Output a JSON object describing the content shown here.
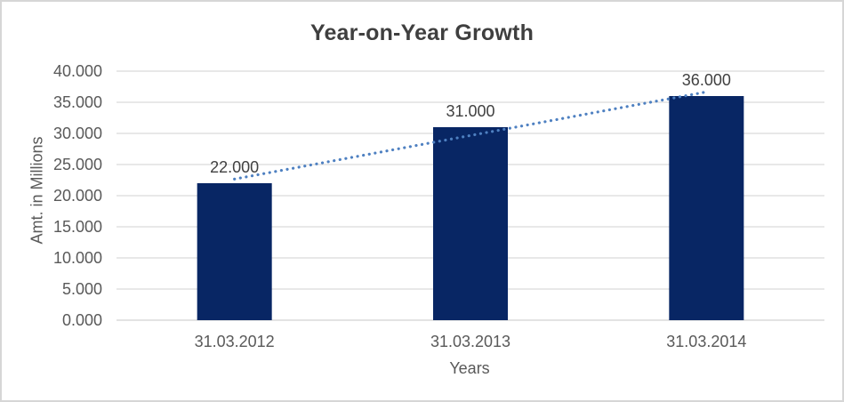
{
  "window": {
    "background": "#FFFFFF",
    "border_color": "#D6D6D6"
  },
  "chart_data": {
    "type": "bar",
    "title": "Year-on-Year Growth",
    "xlabel": "Years",
    "ylabel": "Amt. in Millions",
    "categories": [
      "31.03.2012",
      "31.03.2013",
      "31.03.2014"
    ],
    "values": [
      22,
      31,
      36
    ],
    "data_labels": [
      "22.000",
      "31.000",
      "36.000"
    ],
    "ylim": [
      0,
      40
    ],
    "ytick_step": 5,
    "ytick_labels": [
      "0.000",
      "5.000",
      "10.000",
      "15.000",
      "20.000",
      "25.000",
      "30.000",
      "35.000",
      "40.000"
    ],
    "grid": true,
    "legend": "none",
    "trendline": {
      "type": "linear",
      "style": "dotted"
    },
    "colors": {
      "bar": "#082664",
      "trendline": "#4E80C1",
      "gridline": "#D9D9D9",
      "axis_line": "#D2D2D2",
      "tick_text": "#595959",
      "title_text": "#3F3F3F",
      "label_text": "#404040"
    }
  }
}
